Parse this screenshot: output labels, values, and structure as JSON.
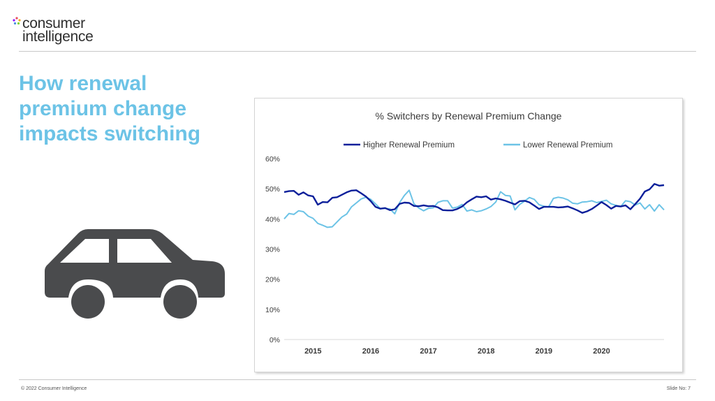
{
  "logo": {
    "line1": "consumer",
    "line2": "intelligence"
  },
  "heading": {
    "lines": [
      "How renewal",
      "premium change",
      "impacts switching"
    ]
  },
  "colors": {
    "heading": "#6cc3e6",
    "series_higher": "#0b1f9a",
    "series_lower": "#6cc3e6",
    "car": "#4a4b4d"
  },
  "icons": {
    "vehicle": "car-icon"
  },
  "chart_data": {
    "type": "line",
    "title": "% Switchers by Renewal Premium Change",
    "xlabel": "",
    "ylabel": "",
    "ylim": [
      0,
      60
    ],
    "yticks": [
      "0%",
      "10%",
      "20%",
      "30%",
      "40%",
      "50%",
      "60%"
    ],
    "xticks": [
      "2015",
      "2016",
      "2017",
      "2018",
      "2019",
      "2020"
    ],
    "grid": false,
    "legend": "top",
    "series": [
      {
        "name": "Higher Renewal Premium",
        "values": [
          48.9,
          49.2,
          49.3,
          48.0,
          48.8,
          47.8,
          47.5,
          44.7,
          45.6,
          45.5,
          47.0,
          47.2,
          48.0,
          48.8,
          49.4,
          49.5,
          48.5,
          47.4,
          45.9,
          44.0,
          43.4,
          43.6,
          42.9,
          43.2,
          45.0,
          45.4,
          45.3,
          44.3,
          44.2,
          44.5,
          44.2,
          44.3,
          43.8,
          42.9,
          42.8,
          42.8,
          43.3,
          44.1,
          45.5,
          46.5,
          47.4,
          47.2,
          47.5,
          46.4,
          46.8,
          46.5,
          46.0,
          45.4,
          44.8,
          45.9,
          46.0,
          45.5,
          44.4,
          43.3,
          44.0,
          44.0,
          44.0,
          43.8,
          43.9,
          44.1,
          43.5,
          42.8,
          42.0,
          42.5,
          43.3,
          44.4,
          45.6,
          44.6,
          43.4,
          44.3,
          44.1,
          44.5,
          43.2,
          44.9,
          46.7,
          49.1,
          49.8,
          51.6,
          51.0,
          51.2
        ]
      },
      {
        "name": "Lower Renewal Premium",
        "values": [
          40.0,
          41.8,
          41.5,
          42.7,
          42.4,
          40.9,
          40.2,
          38.5,
          37.9,
          37.2,
          37.4,
          39.0,
          40.6,
          41.6,
          44.0,
          45.3,
          46.6,
          47.2,
          46.5,
          45.0,
          43.4,
          43.5,
          43.3,
          41.7,
          45.4,
          47.8,
          49.5,
          45.0,
          43.6,
          42.7,
          43.5,
          43.7,
          45.5,
          46.0,
          46.0,
          43.6,
          43.9,
          44.8,
          42.6,
          43.0,
          42.4,
          42.7,
          43.3,
          44.1,
          45.6,
          49.0,
          47.8,
          47.6,
          43.0,
          44.8,
          45.9,
          47.1,
          46.5,
          44.7,
          44.2,
          44.0,
          46.8,
          47.2,
          46.9,
          46.3,
          45.2,
          45.0,
          45.6,
          45.7,
          46.0,
          45.4,
          45.8,
          46.2,
          45.0,
          44.5,
          44.1,
          46.0,
          45.7,
          44.6,
          45.3,
          43.3,
          44.7,
          42.6,
          44.7,
          43.0
        ]
      }
    ]
  },
  "footer": {
    "copyright": "© 2022 Consumer Intelligence",
    "slide_no": "Slide No: 7"
  }
}
